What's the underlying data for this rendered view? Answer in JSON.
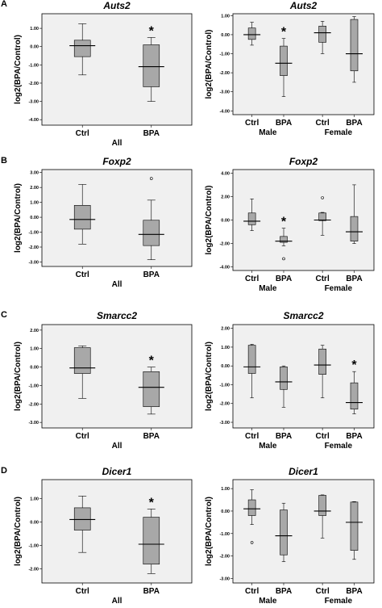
{
  "panels": [
    "A",
    "B",
    "C",
    "D"
  ],
  "chart_data": [
    {
      "type": "box",
      "panel": "A",
      "title": "Auts2",
      "ylabel": "log2(BPA/Control)",
      "ylim": [
        -4.3,
        1.8
      ],
      "yticks": [
        "-4.00",
        "-3.00",
        "-2.00",
        "-1.00",
        "0.00",
        "1.00"
      ],
      "ytick_values": [
        -4,
        -3,
        -2,
        -1,
        0,
        1
      ],
      "categories": [
        "Ctrl",
        "BPA"
      ],
      "groups": [
        {
          "label": "All",
          "span": [
            0,
            1
          ]
        }
      ],
      "boxes": [
        {
          "min": -1.55,
          "q1": -0.55,
          "median": 0.05,
          "q3": 0.35,
          "max": 1.25,
          "outliers": []
        },
        {
          "min": -3.0,
          "q1": -2.2,
          "median": -1.1,
          "q3": 0.1,
          "max": 0.5,
          "outliers": []
        }
      ],
      "significant": [
        "",
        "*"
      ]
    },
    {
      "type": "box",
      "panel": "A",
      "title": "Auts2",
      "ylabel": "log2(BPA/Control)",
      "ylim": [
        -4.2,
        1.1
      ],
      "yticks": [
        "-4.00",
        "-3.00",
        "-2.00",
        "-1.00",
        "0.00",
        "1.00"
      ],
      "ytick_values": [
        -4,
        -3,
        -2,
        -1,
        0,
        1
      ],
      "categories": [
        "Ctrl",
        "BPA",
        "Ctrl",
        "BPA"
      ],
      "groups": [
        {
          "label": "Male",
          "span": [
            0,
            1
          ]
        },
        {
          "label": "Female",
          "span": [
            2,
            3
          ]
        }
      ],
      "boxes": [
        {
          "min": -0.55,
          "q1": -0.25,
          "median": 0.0,
          "q3": 0.35,
          "max": 0.65,
          "outliers": []
        },
        {
          "min": -3.25,
          "q1": -2.15,
          "median": -1.5,
          "q3": -0.6,
          "max": -0.2,
          "outliers": []
        },
        {
          "min": -1.0,
          "q1": -0.4,
          "median": 0.1,
          "q3": 0.45,
          "max": 0.7,
          "outliers": []
        },
        {
          "min": -2.5,
          "q1": -1.9,
          "median": -1.0,
          "q3": 0.8,
          "max": 0.95,
          "outliers": []
        }
      ],
      "significant": [
        "",
        "*",
        "",
        ""
      ]
    },
    {
      "type": "box",
      "panel": "B",
      "title": "Foxp2",
      "ylabel": "log2(BPA/Control)",
      "ylim": [
        -3.3,
        3.2
      ],
      "yticks": [
        "-3.00",
        "-2.00",
        "-1.00",
        "0.00",
        "1.00",
        "2.00",
        "3.00"
      ],
      "ytick_values": [
        -3,
        -2,
        -1,
        0,
        1,
        2,
        3
      ],
      "categories": [
        "Ctrl",
        "BPA"
      ],
      "groups": [
        {
          "label": "All",
          "span": [
            0,
            1
          ]
        }
      ],
      "boxes": [
        {
          "min": -1.8,
          "q1": -0.8,
          "median": -0.15,
          "q3": 0.8,
          "max": 2.2,
          "outliers": []
        },
        {
          "min": -2.85,
          "q1": -1.9,
          "median": -1.15,
          "q3": -0.2,
          "max": 1.15,
          "outliers": [
            2.6
          ]
        }
      ],
      "significant": [
        "",
        ""
      ]
    },
    {
      "type": "box",
      "panel": "B",
      "title": "Foxp2",
      "ylabel": "log2(BPA/Control)",
      "ylim": [
        -4.3,
        4.3
      ],
      "yticks": [
        "-4.00",
        "-2.00",
        "0.00",
        "2.00",
        "4.00"
      ],
      "ytick_values": [
        -4,
        -2,
        0,
        2,
        4
      ],
      "categories": [
        "Ctrl",
        "BPA",
        "Ctrl",
        "BPA"
      ],
      "groups": [
        {
          "label": "Male",
          "span": [
            0,
            1
          ]
        },
        {
          "label": "Female",
          "span": [
            2,
            3
          ]
        }
      ],
      "boxes": [
        {
          "min": -0.9,
          "q1": -0.4,
          "median": -0.1,
          "q3": 0.6,
          "max": 1.8,
          "outliers": []
        },
        {
          "min": -2.2,
          "q1": -1.9,
          "median": -1.8,
          "q3": -1.4,
          "max": -0.7,
          "outliers": [
            -3.3
          ]
        },
        {
          "min": -1.3,
          "q1": -0.05,
          "median": 0.0,
          "q3": 0.6,
          "max": 0.65,
          "outliers": [
            1.9
          ]
        },
        {
          "min": -2.0,
          "q1": -1.8,
          "median": -1.0,
          "q3": 0.3,
          "max": 3.0,
          "outliers": []
        }
      ],
      "significant": [
        "",
        "*",
        "",
        ""
      ]
    },
    {
      "type": "box",
      "panel": "C",
      "title": "Smarcc2",
      "ylabel": "log2(BPA/Control)",
      "ylim": [
        -3.3,
        2.3
      ],
      "yticks": [
        "-3.00",
        "-2.00",
        "-1.00",
        "0.00",
        "1.00",
        "2.00"
      ],
      "ytick_values": [
        -3,
        -2,
        -1,
        0,
        1,
        2
      ],
      "categories": [
        "Ctrl",
        "BPA"
      ],
      "groups": [
        {
          "label": "All",
          "span": [
            0,
            1
          ]
        }
      ],
      "boxes": [
        {
          "min": -1.7,
          "q1": -0.35,
          "median": -0.05,
          "q3": 1.05,
          "max": 1.15,
          "outliers": []
        },
        {
          "min": -2.55,
          "q1": -2.15,
          "median": -1.1,
          "q3": -0.25,
          "max": 0.0,
          "outliers": []
        }
      ],
      "significant": [
        "",
        "*"
      ]
    },
    {
      "type": "box",
      "panel": "C",
      "title": "Smarcc2",
      "ylabel": "log2(BPA/Control)",
      "ylim": [
        -3.3,
        2.2
      ],
      "yticks": [
        "-3.00",
        "-2.00",
        "-1.00",
        "0.00",
        "1.00",
        "2.00"
      ],
      "ytick_values": [
        -3,
        -2,
        -1,
        0,
        1,
        2
      ],
      "categories": [
        "Ctrl",
        "BPA",
        "Ctrl",
        "BPA"
      ],
      "groups": [
        {
          "label": "Male",
          "span": [
            0,
            1
          ]
        },
        {
          "label": "Female",
          "span": [
            2,
            3
          ]
        }
      ],
      "boxes": [
        {
          "min": -1.7,
          "q1": -0.4,
          "median": -0.05,
          "q3": 1.1,
          "max": 1.15,
          "outliers": []
        },
        {
          "min": -2.2,
          "q1": -1.25,
          "median": -0.85,
          "q3": -0.05,
          "max": 0.0,
          "outliers": []
        },
        {
          "min": -1.7,
          "q1": -0.45,
          "median": 0.05,
          "q3": 0.9,
          "max": 1.1,
          "outliers": []
        },
        {
          "min": -2.55,
          "q1": -2.3,
          "median": -1.95,
          "q3": -0.9,
          "max": -0.3,
          "outliers": []
        }
      ],
      "significant": [
        "",
        "",
        "",
        "*"
      ]
    },
    {
      "type": "box",
      "panel": "D",
      "title": "Dicer1",
      "ylabel": "log2(BPA/Control)",
      "ylim": [
        -2.6,
        1.8
      ],
      "yticks": [
        "-2.00",
        "-1.00",
        "0.00",
        "1.00"
      ],
      "ytick_values": [
        -2,
        -1,
        0,
        1
      ],
      "categories": [
        "Ctrl",
        "BPA"
      ],
      "groups": [
        {
          "label": "All",
          "span": [
            0,
            1
          ]
        }
      ],
      "boxes": [
        {
          "min": -1.3,
          "q1": -0.35,
          "median": 0.1,
          "q3": 0.6,
          "max": 1.1,
          "outliers": []
        },
        {
          "min": -2.2,
          "q1": -1.8,
          "median": -0.95,
          "q3": 0.2,
          "max": 0.55,
          "outliers": []
        }
      ],
      "significant": [
        "",
        "*"
      ]
    },
    {
      "type": "box",
      "panel": "D",
      "title": "Dicer1",
      "ylabel": "log2(BPA/Control)",
      "ylim": [
        -3.2,
        1.4
      ],
      "yticks": [
        "-3.00",
        "-2.00",
        "-1.00",
        "0.00",
        "1.00"
      ],
      "ytick_values": [
        -3,
        -2,
        -1,
        0,
        1
      ],
      "categories": [
        "Ctrl",
        "BPA",
        "Ctrl",
        "BPA"
      ],
      "groups": [
        {
          "label": "Male",
          "span": [
            0,
            1
          ]
        },
        {
          "label": "Female",
          "span": [
            2,
            3
          ]
        }
      ],
      "boxes": [
        {
          "min": -0.6,
          "q1": -0.2,
          "median": 0.1,
          "q3": 0.5,
          "max": 0.95,
          "outliers": [
            -1.4
          ]
        },
        {
          "min": -2.25,
          "q1": -1.95,
          "median": -1.1,
          "q3": 0.05,
          "max": 0.35,
          "outliers": []
        },
        {
          "min": -1.2,
          "q1": -0.2,
          "median": 0.0,
          "q3": 0.7,
          "max": 0.72,
          "outliers": []
        },
        {
          "min": -2.15,
          "q1": -1.75,
          "median": -0.5,
          "q3": 0.4,
          "max": 0.42,
          "outliers": []
        }
      ],
      "significant": [
        "",
        "",
        "",
        ""
      ]
    }
  ]
}
